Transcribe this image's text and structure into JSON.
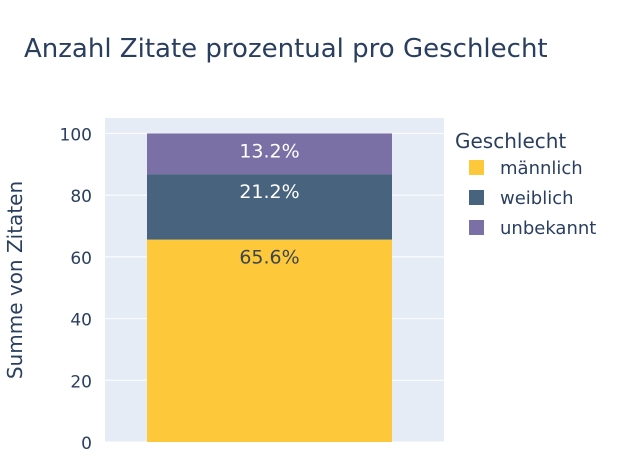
{
  "chart_data": {
    "type": "bar",
    "stacked": true,
    "title": "Anzahl Zitate prozentual pro Geschlecht",
    "xlabel": "",
    "ylabel": "Summe von Zitaten",
    "ylim": [
      0,
      105
    ],
    "yticks": [
      0,
      20,
      40,
      60,
      80,
      100
    ],
    "grid": true,
    "legend": {
      "title": "Geschlecht",
      "placement": "top-right"
    },
    "categories": [
      ""
    ],
    "series": [
      {
        "name": "männlich",
        "values": [
          65.6
        ],
        "label": "65.6%",
        "color": "#fdc93a",
        "label_color": "#3d4451"
      },
      {
        "name": "weiblich",
        "values": [
          21.2
        ],
        "label": "21.2%",
        "color": "#47637e",
        "label_color": "#ffffff"
      },
      {
        "name": "unbekannt",
        "values": [
          13.2
        ],
        "label": "13.2%",
        "color": "#7b70a6",
        "label_color": "#ffffff"
      }
    ],
    "colors": {
      "plot_background": "#e5ecf6",
      "grid": "#ffffff",
      "text": "#2a3f5f"
    }
  }
}
